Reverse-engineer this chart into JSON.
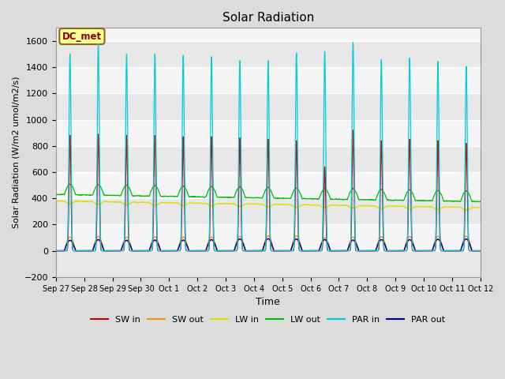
{
  "title": "Solar Radiation",
  "xlabel": "Time",
  "ylabel": "Solar Radiation (W/m2 umol/m2/s)",
  "ylim": [
    -200,
    1700
  ],
  "yticks": [
    -200,
    0,
    200,
    400,
    600,
    800,
    1000,
    1200,
    1400,
    1600
  ],
  "x_labels": [
    "Sep 27",
    "Sep 28",
    "Sep 29",
    "Sep 30",
    "Oct 1",
    "Oct 2",
    "Oct 3",
    "Oct 4",
    "Oct 5",
    "Oct 6",
    "Oct 7",
    "Oct 8",
    "Oct 9",
    "Oct 10",
    "Oct 11",
    "Oct 12"
  ],
  "num_days": 15,
  "annotation_text": "DC_met",
  "annotation_box_color": "#FFFF99",
  "annotation_text_color": "#8B0000",
  "annotation_border_color": "#8B6914",
  "figure_bg": "#DCDCDC",
  "plot_bg": "#F5F5F5",
  "grid_color": "#FFFFFF",
  "colors": {
    "SW_in": "#CC0000",
    "SW_out": "#FF8C00",
    "LW_in": "#DDDD00",
    "LW_out": "#00BB00",
    "PAR_in": "#00CCDD",
    "PAR_out": "#000099"
  },
  "legend_labels": [
    "SW in",
    "SW out",
    "LW in",
    "LW out",
    "PAR in",
    "PAR out"
  ]
}
